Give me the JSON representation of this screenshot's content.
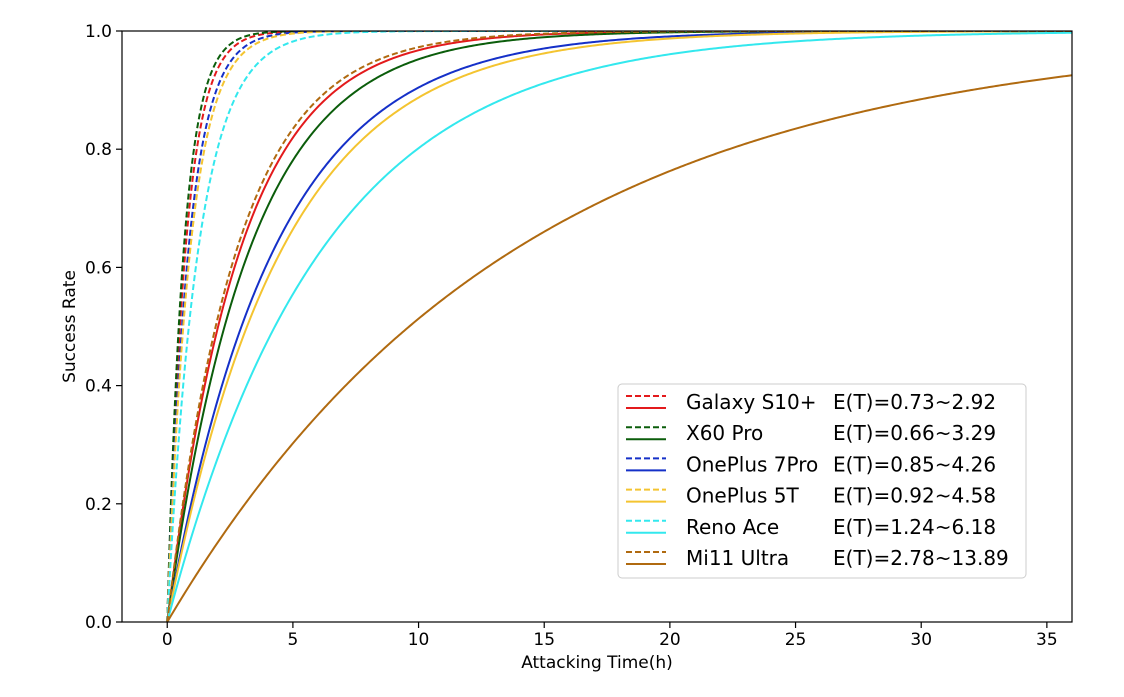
{
  "chart_data": {
    "type": "line",
    "title": "",
    "xlabel": "Attacking Time(h)",
    "ylabel": "Success Rate",
    "xlim": [
      -1.8,
      36
    ],
    "ylim": [
      0.0,
      1.0
    ],
    "xticks": [
      0,
      5,
      10,
      15,
      20,
      25,
      30,
      35
    ],
    "xtick_labels": [
      "0",
      "5",
      "10",
      "15",
      "20",
      "25",
      "30",
      "35"
    ],
    "yticks": [
      0.0,
      0.2,
      0.4,
      0.6,
      0.8,
      1.0
    ],
    "ytick_labels": [
      "0.0",
      "0.2",
      "0.4",
      "0.6",
      "0.8",
      "1.0"
    ],
    "grid": false,
    "legend_position": "lower-right",
    "curve_model": "1 - exp(-t / E(T))",
    "devices": [
      {
        "name": "Galaxy S10+",
        "range_label": "E(T)=0.73~2.92",
        "color": "#e31a1c",
        "et_min": 0.73,
        "et_max": 2.92
      },
      {
        "name": "X60 Pro",
        "range_label": "E(T)=0.66~3.29",
        "color": "#0b5d0b",
        "et_min": 0.66,
        "et_max": 3.29
      },
      {
        "name": "OnePlus 7Pro",
        "range_label": "E(T)=0.85~4.26",
        "color": "#1530c8",
        "et_min": 0.85,
        "et_max": 4.26
      },
      {
        "name": "OnePlus 5T",
        "range_label": "E(T)=0.92~4.58",
        "color": "#f4c430",
        "et_min": 0.92,
        "et_max": 4.58
      },
      {
        "name": "Reno Ace",
        "range_label": "E(T)=1.24~6.18",
        "color": "#33e8ee",
        "et_min": 1.24,
        "et_max": 6.18
      },
      {
        "name": "Mi11 Ultra",
        "range_label": "E(T)=2.78~13.89",
        "color": "#b06a10",
        "et_min": 2.78,
        "et_max": 13.89
      }
    ]
  }
}
